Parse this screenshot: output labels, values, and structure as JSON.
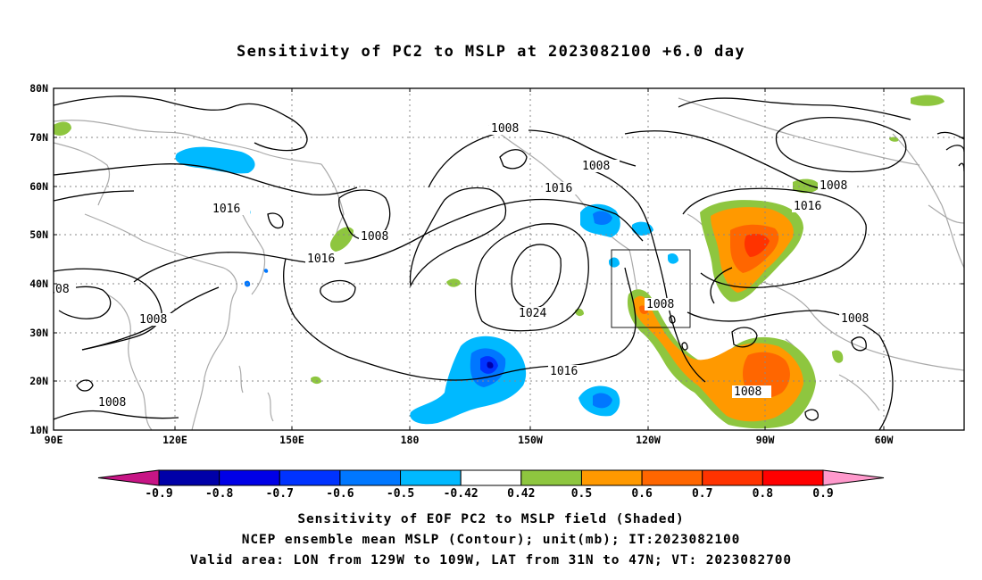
{
  "title": "Sensitivity of PC2 to MSLP at 2023082100 +6.0 day",
  "axes": {
    "x_ticks": [
      "90E",
      "120E",
      "150E",
      "180",
      "150W",
      "120W",
      "90W",
      "60W"
    ],
    "y_ticks": [
      "80N",
      "70N",
      "60N",
      "50N",
      "40N",
      "30N",
      "20N",
      "10N"
    ],
    "lon_range": [
      "90E",
      "45W"
    ],
    "lat_range": [
      "10N",
      "80N"
    ],
    "grid": "dotted"
  },
  "contour_labels": [
    "1008",
    "1008",
    "1016",
    "1016",
    "1008",
    "1016",
    "1024",
    "1008",
    "1016",
    "1008",
    "1008",
    "1008",
    "1016",
    "1008",
    "08",
    "1008"
  ],
  "valid_area_box": {
    "lon": [
      "129W",
      "109W"
    ],
    "lat": [
      "31N",
      "47N"
    ]
  },
  "colorbar": {
    "labels": [
      "-0.9",
      "-0.8",
      "-0.7",
      "-0.6",
      "-0.5",
      "-0.42",
      "0.42",
      "0.5",
      "0.6",
      "0.7",
      "0.8",
      "0.9"
    ],
    "colors": [
      "#c71585",
      "#0000a8",
      "#0000e6",
      "#0033ff",
      "#0077ff",
      "#00b9ff",
      "#ffffff",
      "#8ec63f",
      "#ff9900",
      "#ff6600",
      "#ff3300",
      "#ff0000",
      "#ff99cc"
    ]
  },
  "footer": {
    "line1": "Sensitivity of EOF PC2 to MSLP field (Shaded)",
    "line2": "NCEP ensemble mean MSLP (Contour); unit(mb); IT:2023082100",
    "line3": "Valid area: LON from 129W to 109W, LAT from 31N to 47N; VT: 2023082700"
  }
}
